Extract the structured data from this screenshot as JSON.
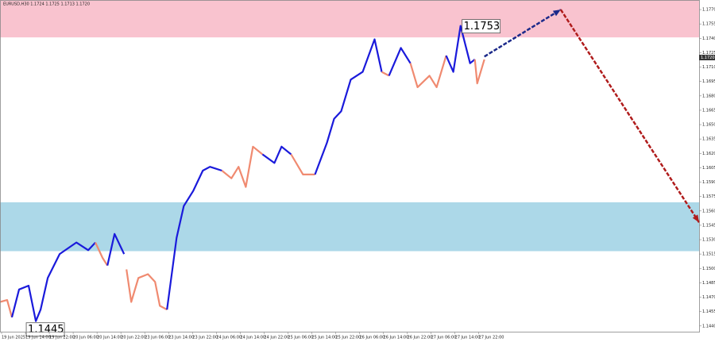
{
  "chart_data": {
    "type": "line",
    "title": "EURUSD,H30 1.1724 1.1725 1.1713 1.1720",
    "xlim": [
      0,
      293
    ],
    "ylim": [
      1.1434,
      1.178
    ],
    "yticks": [
      {
        "value": 1.144,
        "label": "1.1440"
      },
      1.1455,
      {
        "value": 1.147,
        "label": "1.1470"
      },
      1.1485,
      {
        "value": 1.15,
        "label": "1.1500"
      },
      1.1515,
      {
        "value": 1.153,
        "label": "1.1530"
      },
      1.1545,
      {
        "value": 1.156,
        "label": "1.1560"
      },
      1.1575,
      {
        "value": 1.159,
        "label": "1.1590"
      },
      1.1605,
      {
        "value": 1.162,
        "label": "1.1620"
      },
      1.1635,
      {
        "value": 1.165,
        "label": "1.1650"
      },
      1.1665,
      {
        "value": 1.168,
        "label": "1.1680"
      },
      1.1695,
      {
        "value": 1.171,
        "label": "1.1710"
      },
      1.1725,
      {
        "value": 1.174,
        "label": "1.1740"
      },
      1.1755,
      {
        "value": 1.177,
        "label": "1.1770"
      }
    ],
    "xticks": [
      {
        "value": 0,
        "label": "19 Jun 2025"
      },
      {
        "value": 10,
        "label": "19 Jun 14:00"
      },
      {
        "value": 20,
        "label": "19 Jun 22:00"
      },
      {
        "value": 30,
        "label": "20 Jun 06:00"
      },
      {
        "value": 40,
        "label": "20 Jun 14:00"
      },
      {
        "value": 50,
        "label": "20 Jun 22:00"
      },
      {
        "value": 60,
        "label": "23 Jun 06:00"
      },
      {
        "value": 70,
        "label": "23 Jun 14:00"
      },
      {
        "value": 80,
        "label": "23 Jun 22:00"
      },
      {
        "value": 90,
        "label": "24 Jun 06:00"
      },
      {
        "value": 100,
        "label": "24 Jun 14:00"
      },
      {
        "value": 110,
        "label": "24 Jun 22:00"
      },
      {
        "value": 120,
        "label": "25 Jun 06:00"
      },
      {
        "value": 130,
        "label": "25 Jun 14:00"
      },
      {
        "value": 140,
        "label": "25 Jun 22:00"
      },
      {
        "value": 150,
        "label": "26 Jun 06:00"
      },
      {
        "value": 160,
        "label": "26 Jun 14:00"
      },
      {
        "value": 170,
        "label": "26 Jun 22:00"
      },
      {
        "value": 180,
        "label": "27 Jun 06:00"
      },
      {
        "value": 190,
        "label": "27 Jun 14:00"
      },
      {
        "value": 200,
        "label": "27 Jun 22:00"
      }
    ],
    "zones": [
      {
        "from": 1.1741,
        "to": 1.178,
        "color": "#f9c3cf"
      },
      {
        "from": 1.1518,
        "to": 1.1569,
        "color": "#acd8e8"
      }
    ],
    "series": [
      {
        "color": "#f08a70",
        "x": [
          0,
          3,
          5
        ],
        "values": [
          1.1465,
          1.1467,
          1.1449
        ]
      },
      {
        "color": "#1a1adb",
        "x": [
          5,
          8,
          12,
          15,
          17,
          20,
          25,
          32,
          37,
          40
        ],
        "values": [
          1.1449,
          1.1478,
          1.1482,
          1.1445,
          1.1457,
          1.149,
          1.1515,
          1.1527,
          1.1519,
          1.1527
        ]
      },
      {
        "color": "#f08a70",
        "x": [
          40,
          43,
          45
        ],
        "values": [
          1.1527,
          1.1511,
          1.1503
        ]
      },
      {
        "color": "#1a1adb",
        "x": [
          45,
          48,
          52
        ],
        "values": [
          1.1503,
          1.1536,
          1.1515
        ]
      },
      {
        "color": "#f08a70",
        "x": [
          53,
          55,
          58,
          62,
          65,
          67,
          70
        ],
        "values": [
          1.1499,
          1.1465,
          1.149,
          1.1494,
          1.1486,
          1.1461,
          1.1457
        ]
      },
      {
        "color": "#1a1adb",
        "x": [
          70,
          74,
          77,
          81,
          85,
          88,
          93
        ],
        "values": [
          1.1457,
          1.1532,
          1.1565,
          1.1581,
          1.1602,
          1.1606,
          1.1602
        ]
      },
      {
        "color": "#f08a70",
        "x": [
          93,
          97,
          100,
          103,
          106,
          110
        ],
        "values": [
          1.1602,
          1.1594,
          1.1606,
          1.1585,
          1.1627,
          1.1619
        ]
      },
      {
        "color": "#1a1adb",
        "x": [
          110,
          115,
          118,
          122
        ],
        "values": [
          1.1619,
          1.161,
          1.1627,
          1.1619
        ]
      },
      {
        "color": "#f08a70",
        "x": [
          122,
          127,
          132
        ],
        "values": [
          1.1619,
          1.1598,
          1.1598
        ]
      },
      {
        "color": "#1a1adb",
        "x": [
          132,
          137,
          140,
          143,
          147,
          152,
          157,
          160
        ],
        "values": [
          1.1598,
          1.1631,
          1.1656,
          1.1664,
          1.1697,
          1.1705,
          1.1739,
          1.1705
        ]
      },
      {
        "color": "#f08a70",
        "x": [
          160,
          163
        ],
        "values": [
          1.1705,
          1.1701
        ]
      },
      {
        "color": "#1a1adb",
        "x": [
          163,
          168,
          172
        ],
        "values": [
          1.1701,
          1.173,
          1.1714
        ]
      },
      {
        "color": "#f08a70",
        "x": [
          172,
          175,
          180,
          183,
          187
        ],
        "values": [
          1.1714,
          1.1689,
          1.1701,
          1.1689,
          1.1722
        ]
      },
      {
        "color": "#1a1adb",
        "x": [
          187,
          190,
          193,
          197,
          199
        ],
        "values": [
          1.1722,
          1.1705,
          1.1753,
          1.1714,
          1.1718
        ]
      },
      {
        "color": "#f08a70",
        "x": [
          199,
          200,
          203
        ],
        "values": [
          1.1718,
          1.1693,
          1.1718
        ]
      }
    ],
    "forecast": {
      "x": [
        203,
        235,
        293
      ],
      "values": [
        1.1721,
        1.177,
        1.1548
      ],
      "colors": [
        "#1c2a8a",
        "#b01c1c"
      ]
    },
    "last_price": {
      "value": 1.172,
      "label": "1.1720"
    },
    "annotations": [
      {
        "text": "1.1753",
        "x": 193,
        "y": 1.1753
      },
      {
        "text": "1.1445",
        "x": 15,
        "y": 1.1445
      }
    ]
  }
}
